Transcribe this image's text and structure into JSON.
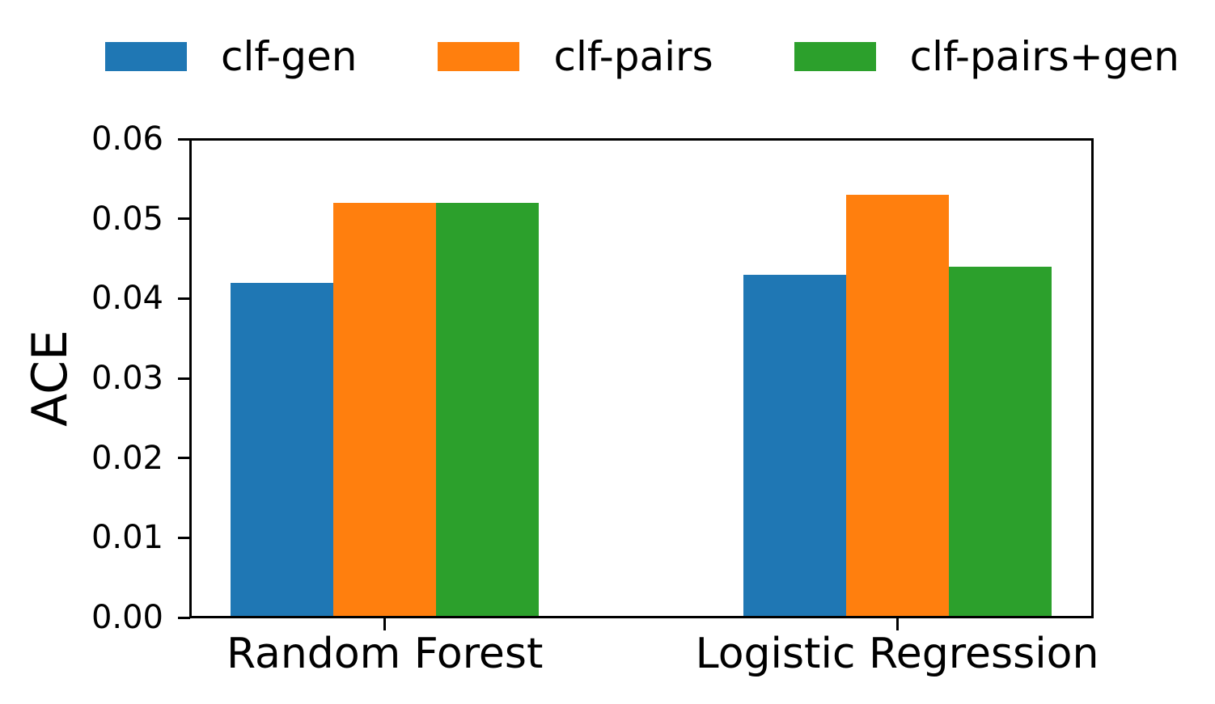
{
  "figure": {
    "background": "#ffffff",
    "spine_color": "#000000",
    "text_color": "#000000"
  },
  "legend": {
    "items": [
      {
        "label": "clf-gen",
        "color": "#1f77b4"
      },
      {
        "label": "clf-pairs",
        "color": "#ff7f0e"
      },
      {
        "label": "clf-pairs+gen",
        "color": "#2ca02c"
      }
    ]
  },
  "chart_data": {
    "type": "bar",
    "title": "",
    "xlabel": "",
    "ylabel": "ACE",
    "categories": [
      "Random Forest",
      "Logistic Regression"
    ],
    "series": [
      {
        "name": "clf-gen",
        "color": "#1f77b4",
        "values": [
          0.042,
          0.043
        ]
      },
      {
        "name": "clf-pairs",
        "color": "#ff7f0e",
        "values": [
          0.052,
          0.053
        ]
      },
      {
        "name": "clf-pairs+gen",
        "color": "#2ca02c",
        "values": [
          0.052,
          0.044
        ]
      }
    ],
    "ylim": [
      0,
      0.06
    ],
    "yticks": [
      "0.00",
      "0.01",
      "0.02",
      "0.03",
      "0.04",
      "0.05",
      "0.06"
    ],
    "grid": false,
    "legend_position": "top"
  }
}
